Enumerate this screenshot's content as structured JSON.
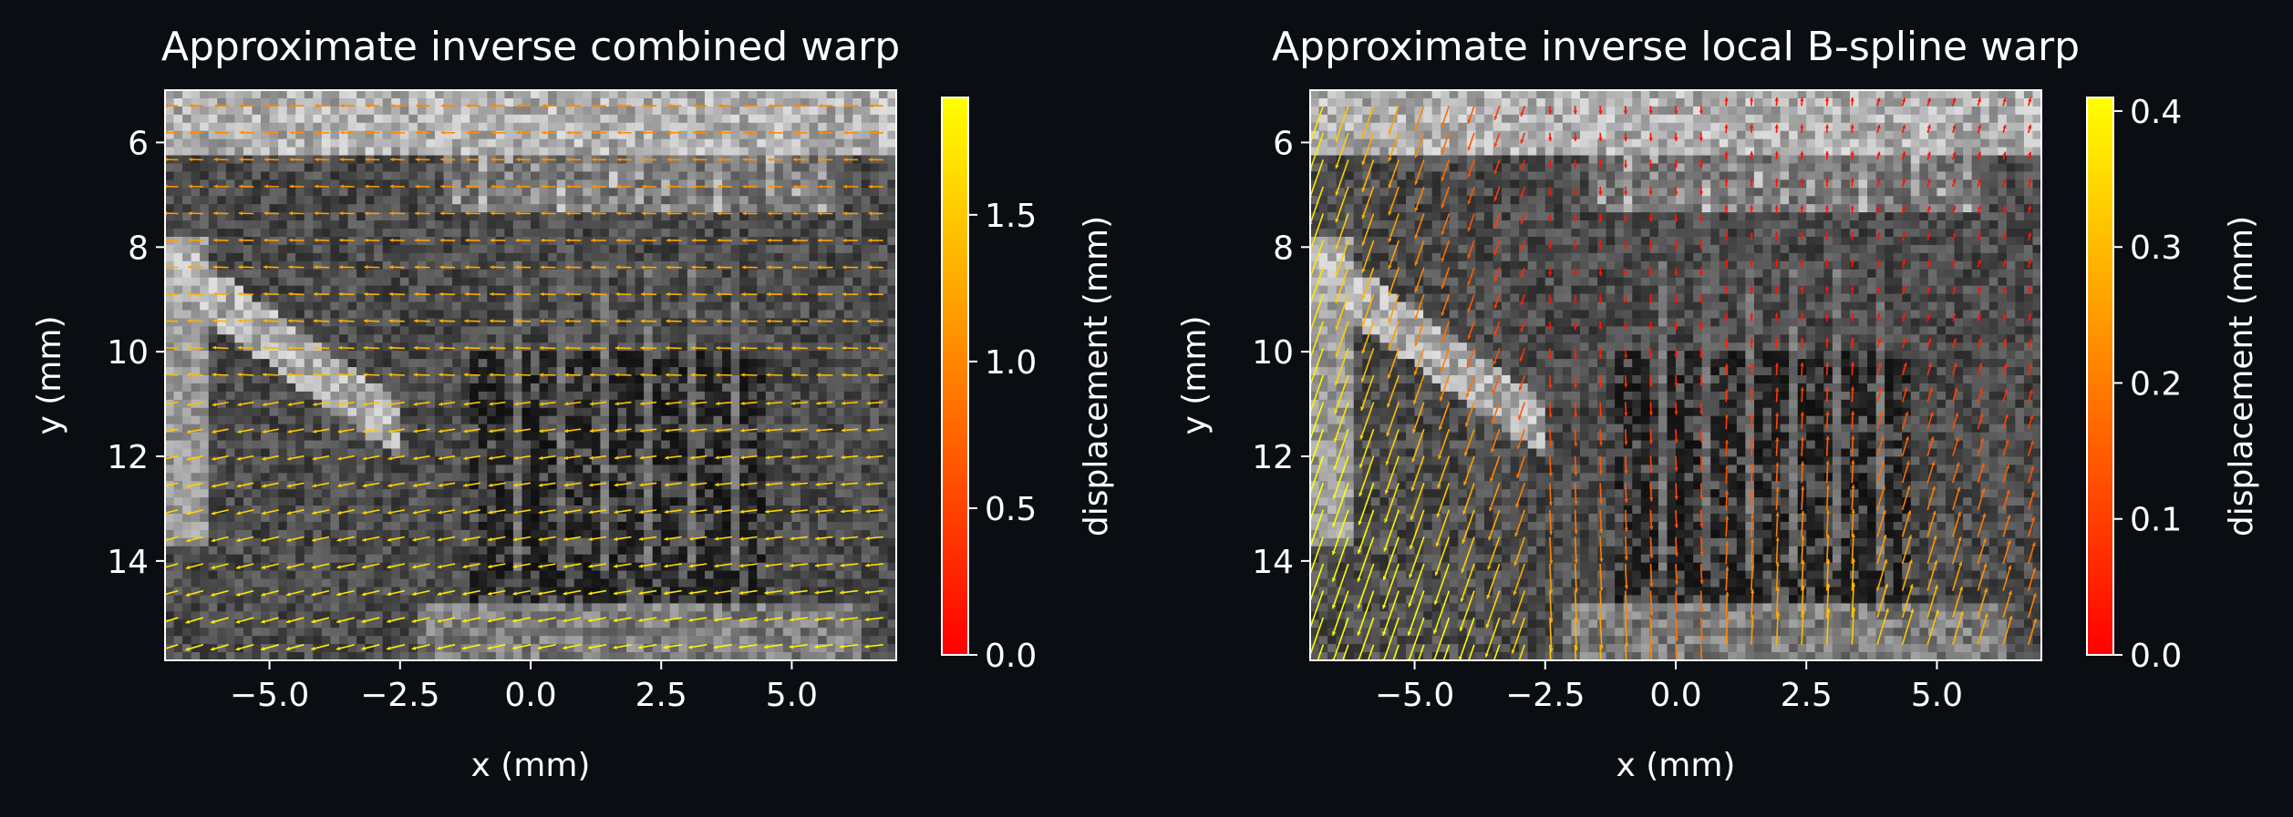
{
  "figure": {
    "background": "#0a0d12",
    "text_color": "#ffffff",
    "axis_color": "#ffffff"
  },
  "chart_data": [
    {
      "type": "heatmap",
      "subtype": "grayscale image with quiver overlay",
      "title": "Approximate inverse combined warp",
      "xlabel": "x (mm)",
      "ylabel": "y (mm)",
      "xlim": [
        -7,
        7
      ],
      "ylim": [
        15.9,
        5.0
      ],
      "y_inverted": true,
      "xticks": [
        -5.0,
        -2.5,
        0.0,
        2.5,
        5.0
      ],
      "xtick_labels": [
        "−5.0",
        "−2.5",
        "0.0",
        "2.5",
        "5.0"
      ],
      "yticks": [
        6,
        8,
        10,
        12,
        14
      ],
      "ytick_labels": [
        "6",
        "8",
        "10",
        "12",
        "14"
      ],
      "image_colormap": "gray",
      "vector_field": {
        "description": "displacement arrows, mostly pointing left; magnitude ~1.0 mm at top rising to ~1.8 mm at bottom",
        "grid_cols": 29,
        "grid_rows": 21,
        "top_displacement_mm": 1.0,
        "bottom_displacement_mm": 1.8,
        "dominant_direction": "left"
      },
      "colorbar": {
        "label": "displacement (mm)",
        "colormap": "autumn",
        "range": [
          0.0,
          1.9
        ],
        "ticks": [
          0.0,
          0.5,
          1.0,
          1.5
        ],
        "tick_labels": [
          "0.0",
          "0.5",
          "1.0",
          "1.5"
        ]
      },
      "grid": false
    },
    {
      "type": "heatmap",
      "subtype": "grayscale image with quiver overlay",
      "title": "Approximate inverse local B-spline warp",
      "xlabel": "x (mm)",
      "ylabel": "y (mm)",
      "xlim": [
        -7,
        7
      ],
      "ylim": [
        15.9,
        5.0
      ],
      "y_inverted": true,
      "xticks": [
        -5.0,
        -2.5,
        0.0,
        2.5,
        5.0
      ],
      "xtick_labels": [
        "−5.0",
        "−2.5",
        "0.0",
        "2.5",
        "5.0"
      ],
      "yticks": [
        6,
        8,
        10,
        12,
        14
      ],
      "ytick_labels": [
        "6",
        "8",
        "10",
        "12",
        "14"
      ],
      "image_colormap": "gray",
      "vector_field": {
        "description": "displacement arrows, mostly vertical; largest (~0.4 mm) near left edge and bottom, small (~0.05 mm) near top-centre",
        "grid_cols": 29,
        "grid_rows": 21,
        "max_displacement_mm": 0.4,
        "dominant_direction": "vertical"
      },
      "colorbar": {
        "label": "displacement (mm)",
        "colormap": "autumn",
        "range": [
          0.0,
          0.41
        ],
        "ticks": [
          0.0,
          0.1,
          0.2,
          0.3,
          0.4
        ],
        "tick_labels": [
          "0.0",
          "0.1",
          "0.2",
          "0.3",
          "0.4"
        ]
      },
      "grid": false
    }
  ]
}
